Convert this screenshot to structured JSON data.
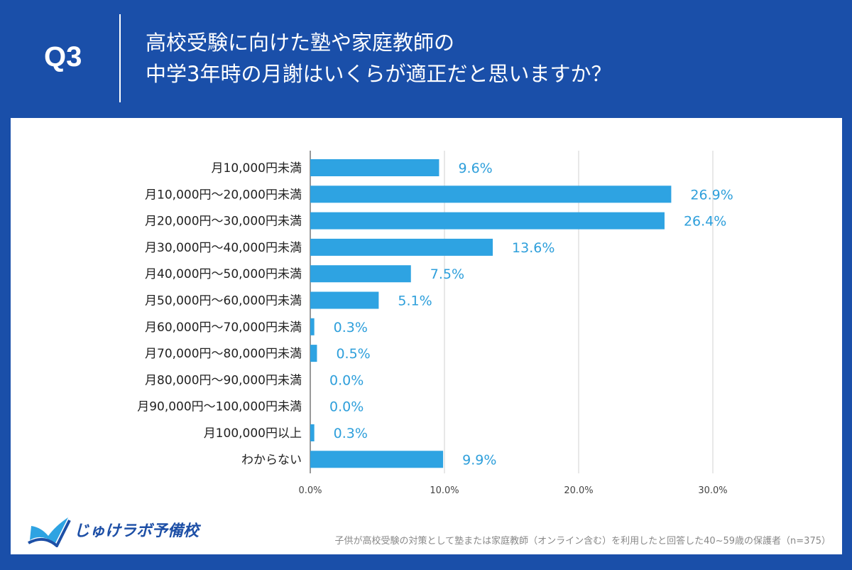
{
  "header": {
    "question": "Q3",
    "title_line1": "高校受験に向けた塾や家庭教師の",
    "title_line2": "中学3年時の月謝はいくらが適正だと思いますか？"
  },
  "footer": {
    "logo": "じゅけラボ予備校",
    "note": "子供が高校受験の対策として塾または家庭教師（オンライン含む）を利用したと回答した40~59歳の保護者（n=375）"
  },
  "chart_data": {
    "type": "bar",
    "orientation": "horizontal",
    "categories": [
      "月10,000円未満",
      "月10,000円〜20,000円未満",
      "月20,000円〜30,000円未満",
      "月30,000円〜40,000円未満",
      "月40,000円〜50,000円未満",
      "月50,000円〜60,000円未満",
      "月60,000円〜70,000円未満",
      "月70,000円〜80,000円未満",
      "月80,000円〜90,000円未満",
      "月90,000円〜100,000円未満",
      "月100,000円以上",
      "わからない"
    ],
    "values": [
      9.6,
      26.9,
      26.4,
      13.6,
      7.5,
      5.1,
      0.3,
      0.5,
      0.0,
      0.0,
      0.3,
      9.9
    ],
    "data_labels": [
      "9.6%",
      "26.9%",
      "26.4%",
      "13.6%",
      "7.5%",
      "5.1%",
      "0.3%",
      "0.5%",
      "0.0%",
      "0.0%",
      "0.3%",
      "9.9%"
    ],
    "xticks": [
      "0.0%",
      "10.0%",
      "20.0%",
      "30.0%"
    ],
    "xlim": [
      0,
      30
    ],
    "grid": true,
    "colors": {
      "bar": "#2ea3e2",
      "label": "#2e9fdb"
    }
  }
}
